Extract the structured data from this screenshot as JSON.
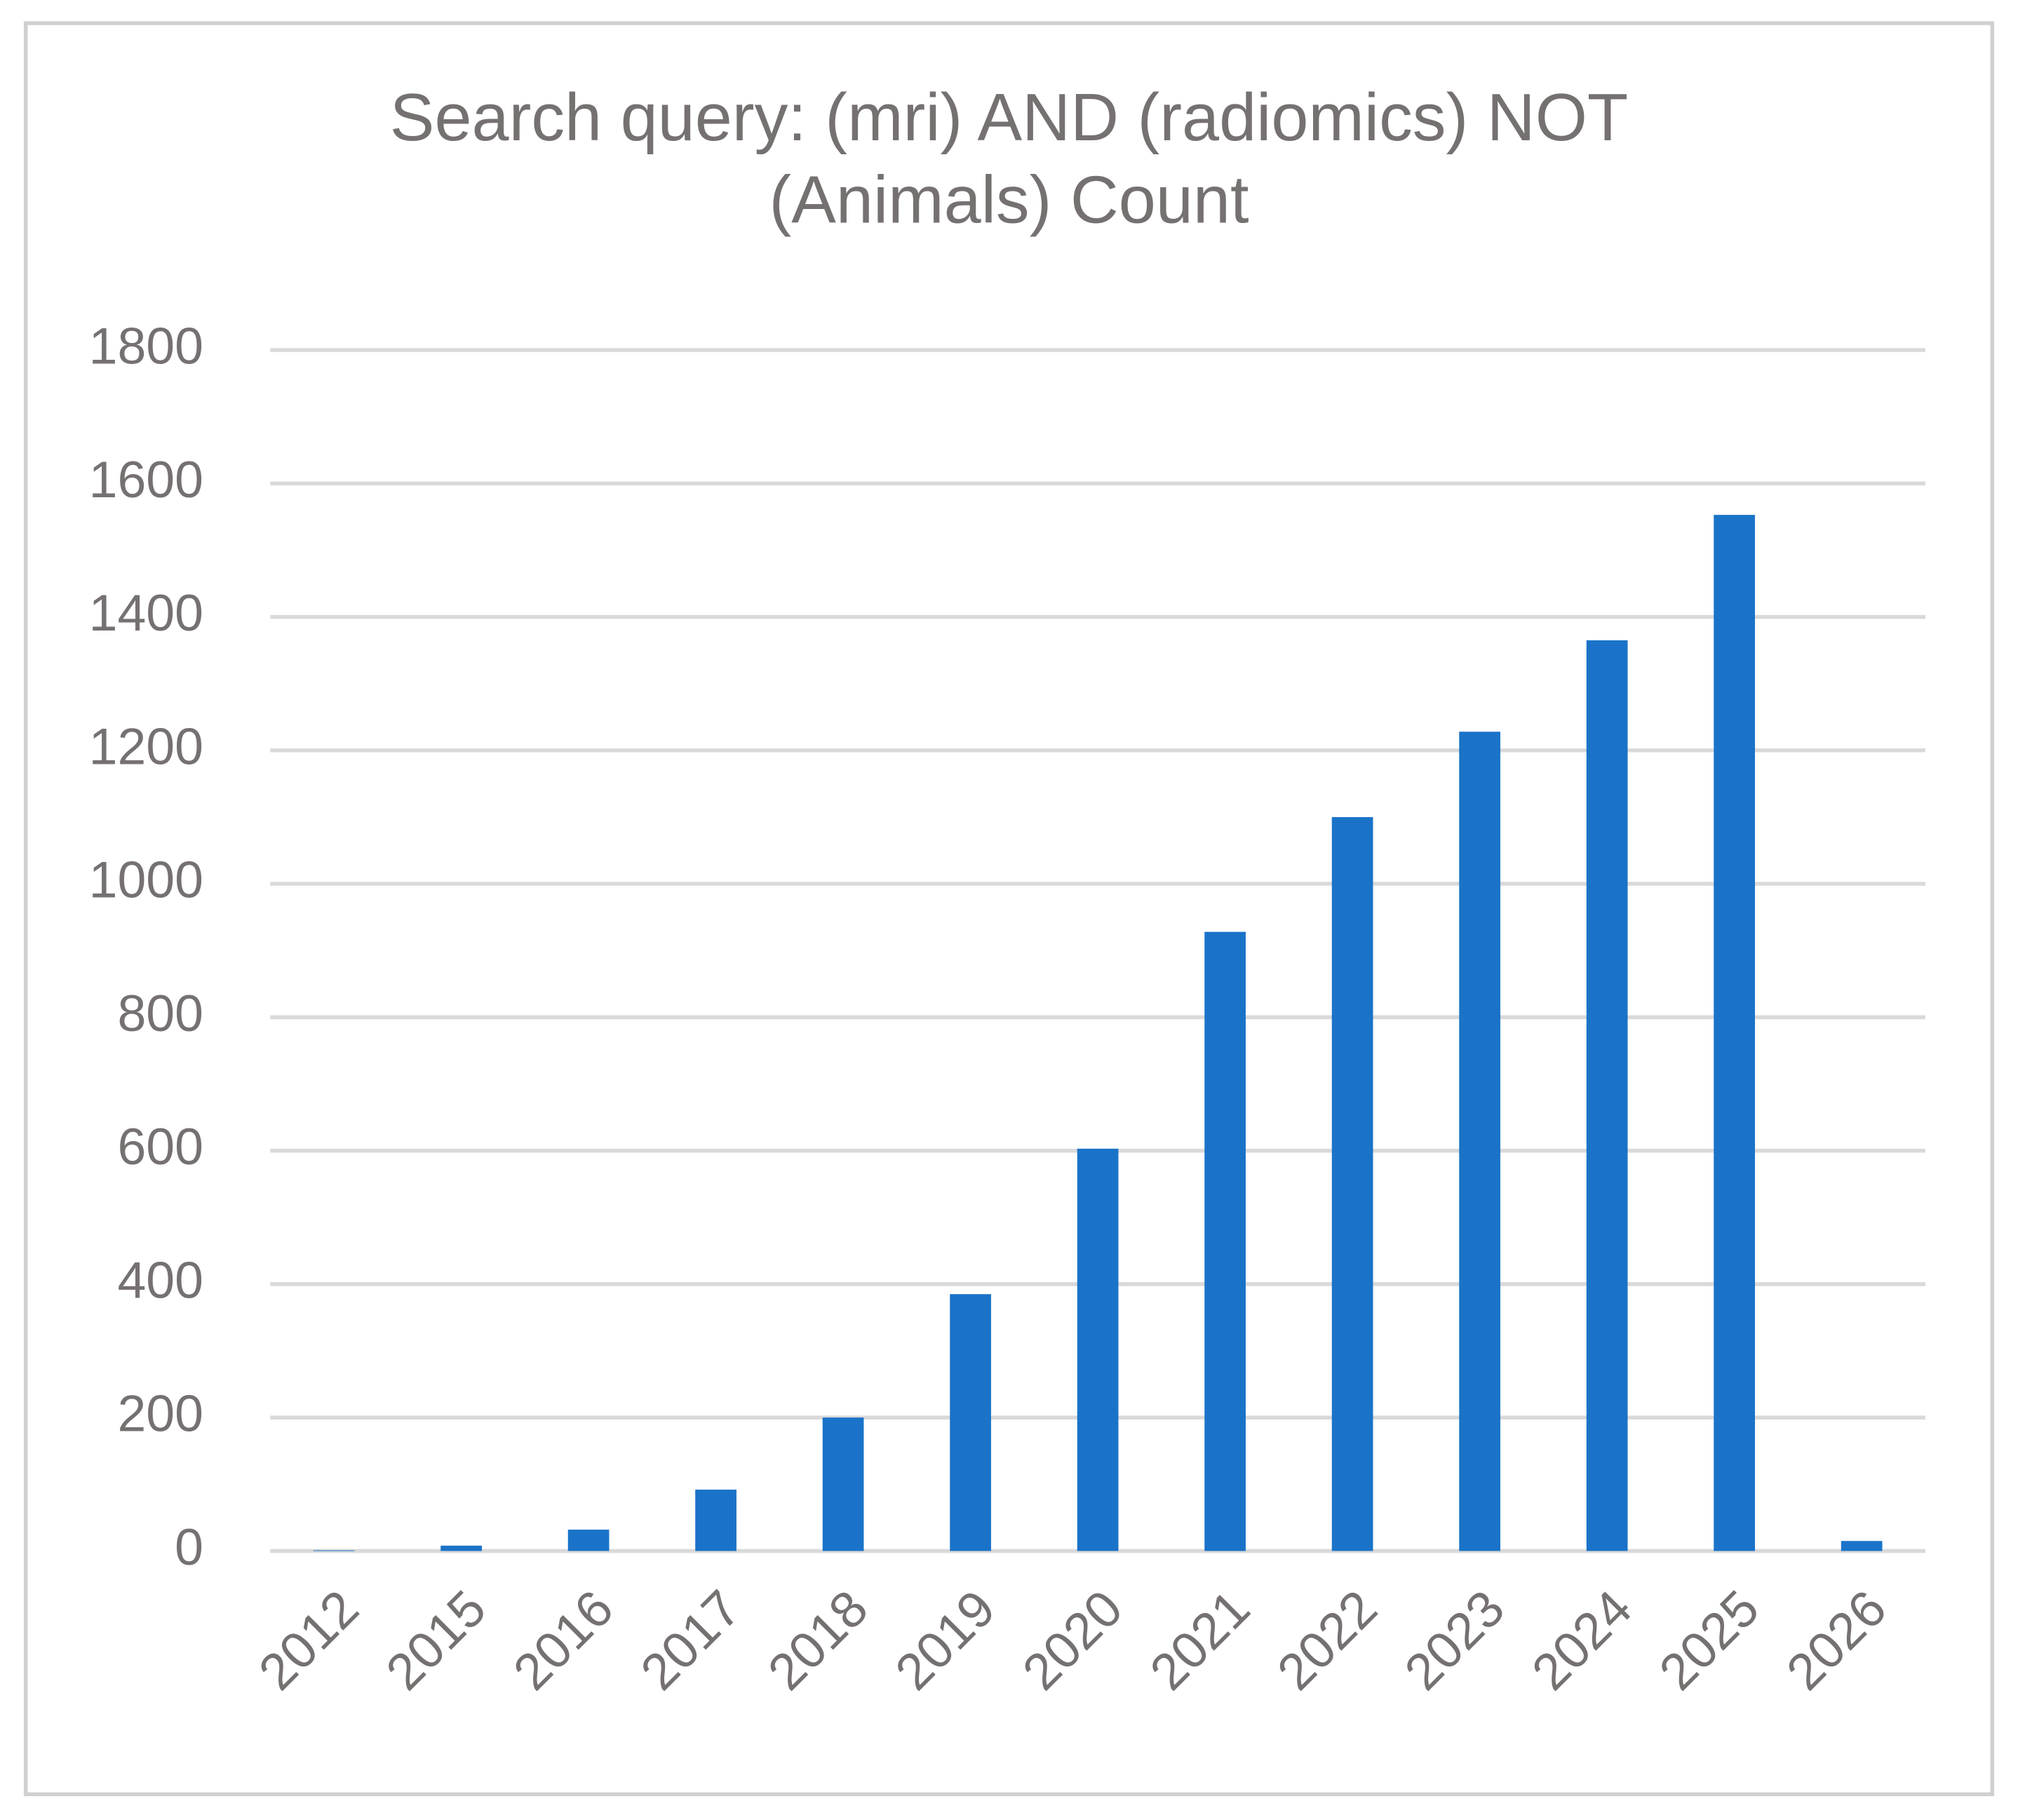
{
  "chart_data": {
    "type": "bar",
    "title": "Search query: (mri) AND (radiomics) NOT (Animals) Count",
    "categories": [
      "2012",
      "2015",
      "2016",
      "2017",
      "2018",
      "2019",
      "2020",
      "2021",
      "2022",
      "2023",
      "2024",
      "2025",
      "2026"
    ],
    "values": [
      1,
      8,
      32,
      92,
      200,
      385,
      603,
      928,
      1100,
      1228,
      1365,
      1553,
      15
    ],
    "color": "#1a73c8",
    "ylim": [
      0,
      1800
    ],
    "yticks": [
      0,
      200,
      400,
      600,
      800,
      1000,
      1200,
      1400,
      1600,
      1800
    ],
    "grid": true
  }
}
